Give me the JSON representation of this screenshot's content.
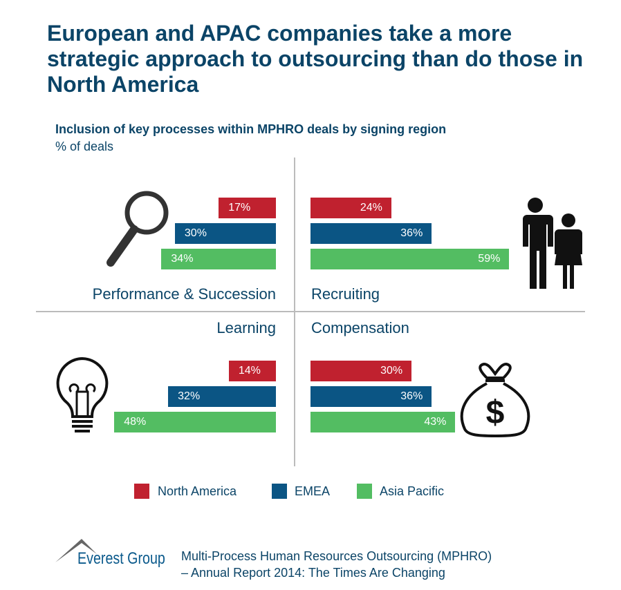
{
  "title": "European and APAC companies take a more strategic approach to outsourcing than do those in North America",
  "chart_data": {
    "type": "bar",
    "title": "Inclusion of key processes within MPHRO deals by signing region",
    "ylabel": "% of deals",
    "series_names": [
      "North America",
      "EMEA",
      "Asia Pacific"
    ],
    "colors": [
      "#c0212f",
      "#0b5584",
      "#53bd62"
    ],
    "panels": [
      {
        "category": "Performance & Succession",
        "icon": "magnifier-icon",
        "values": [
          17,
          30,
          34
        ]
      },
      {
        "category": "Recruiting",
        "icon": "people-icon",
        "values": [
          24,
          36,
          59
        ]
      },
      {
        "category": "Learning",
        "icon": "lightbulb-icon",
        "values": [
          14,
          32,
          48
        ]
      },
      {
        "category": "Compensation",
        "icon": "money-bag-icon",
        "values": [
          30,
          36,
          43
        ]
      }
    ],
    "unit": "%",
    "legend": "bottom"
  },
  "footer": {
    "brand": "Everest Group",
    "line1": "Multi-Process Human Resources Outsourcing (MPHRO)",
    "line2": "– Annual Report 2014: The Times Are Changing"
  }
}
